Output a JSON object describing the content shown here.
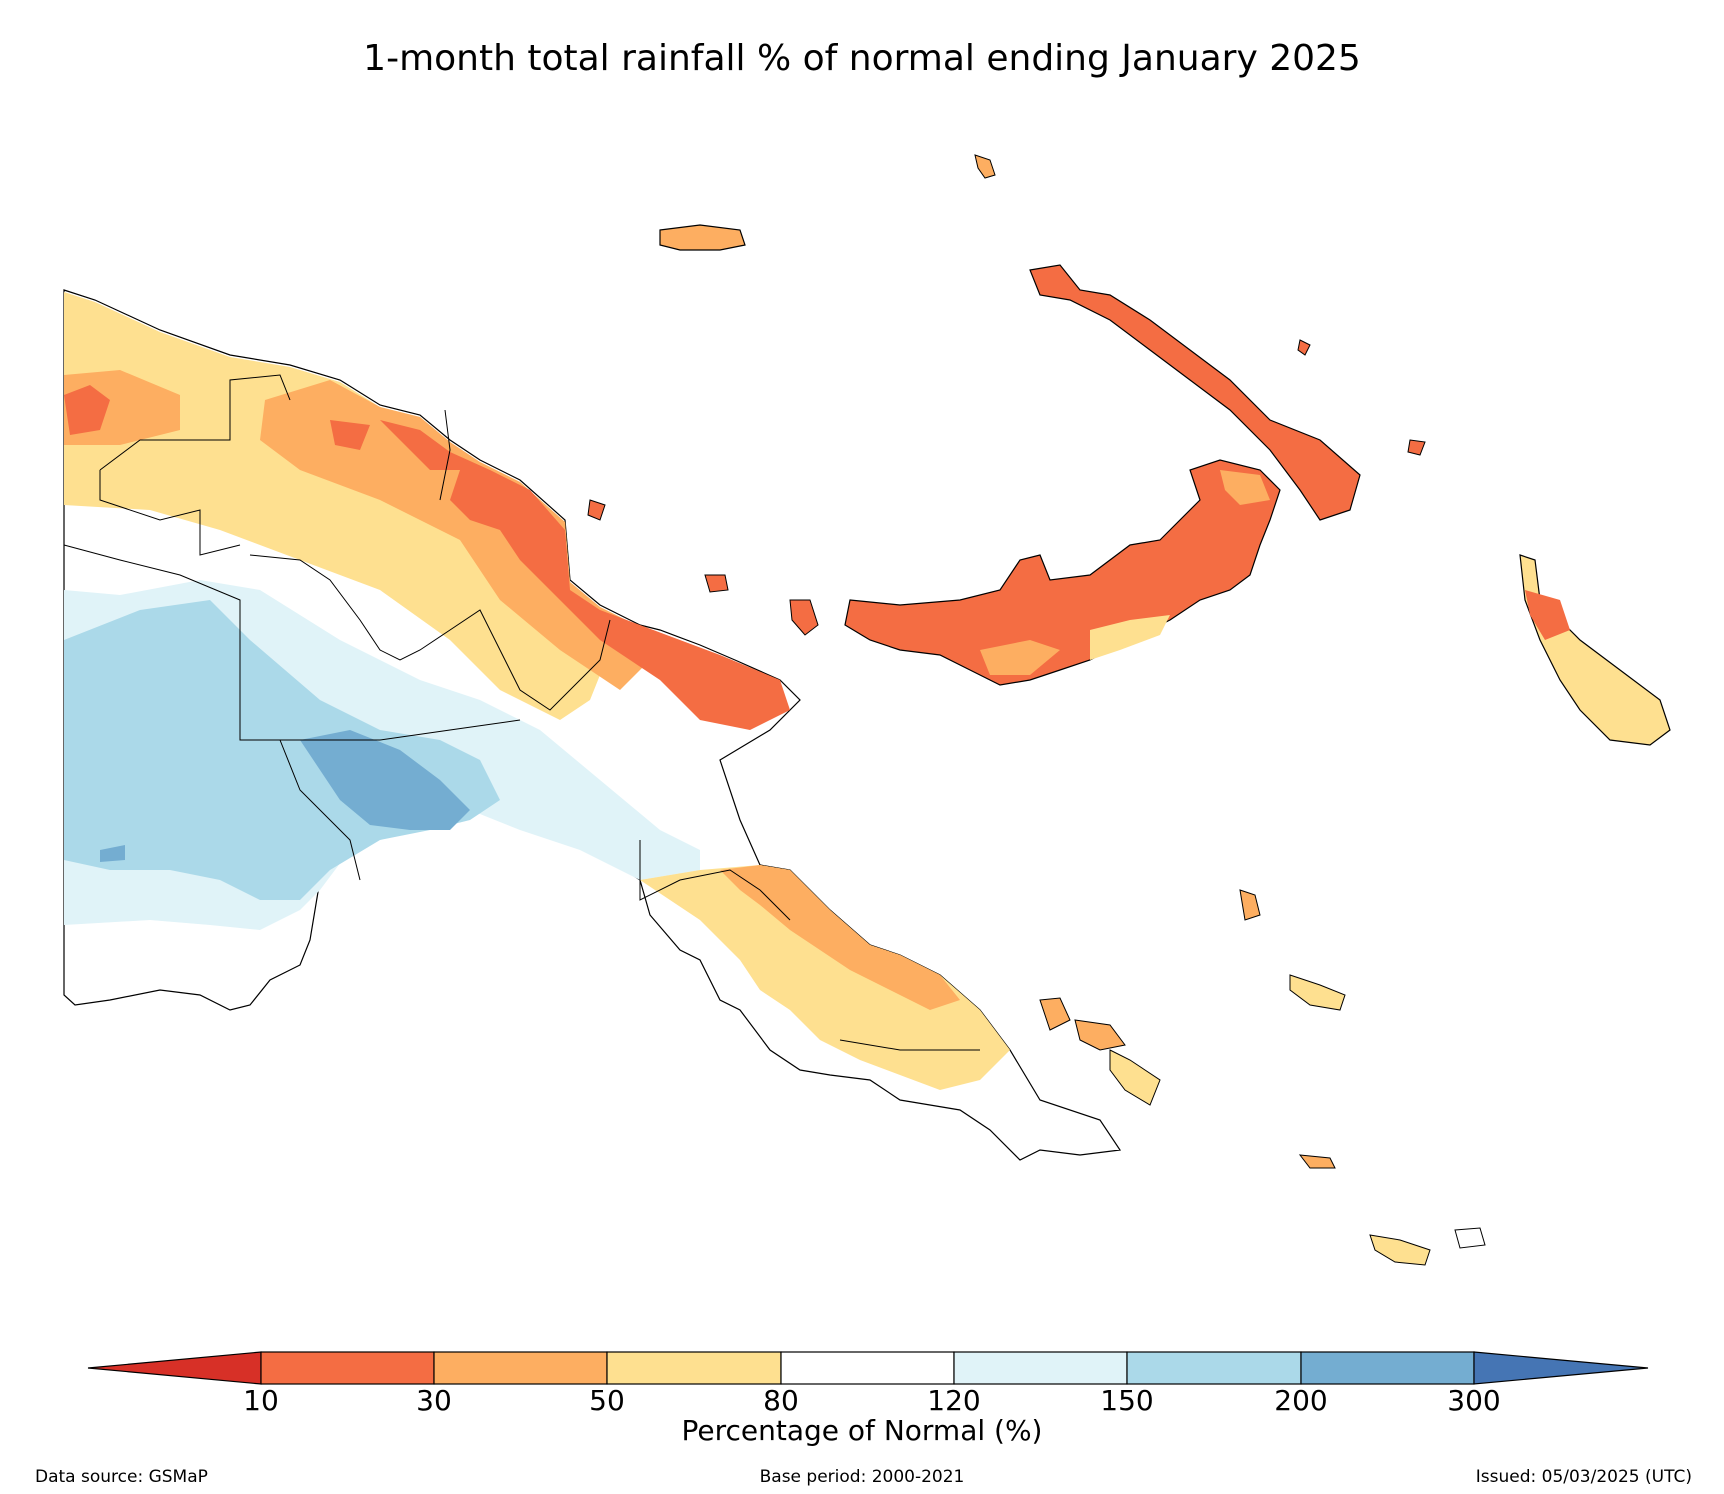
{
  "title": "1-month total rainfall % of normal ending January 2025",
  "legend": {
    "ticks": [
      "10",
      "30",
      "50",
      "80",
      "120",
      "150",
      "200",
      "300"
    ],
    "label": "Percentage of Normal (%)",
    "colors": {
      "below_10": "#d73027",
      "10_30": "#f46d43",
      "30_50": "#fdae61",
      "50_80": "#fee090",
      "80_120": "#ffffff",
      "120_150": "#e0f3f8",
      "150_200": "#abd9e9",
      "200_300": "#74add1",
      "above_300": "#4575b4"
    }
  },
  "footer": {
    "source": "Data source: GSMaP",
    "base_period": "Base period: 2000-2021",
    "issued": "Issued: 05/03/2025 (UTC)"
  }
}
